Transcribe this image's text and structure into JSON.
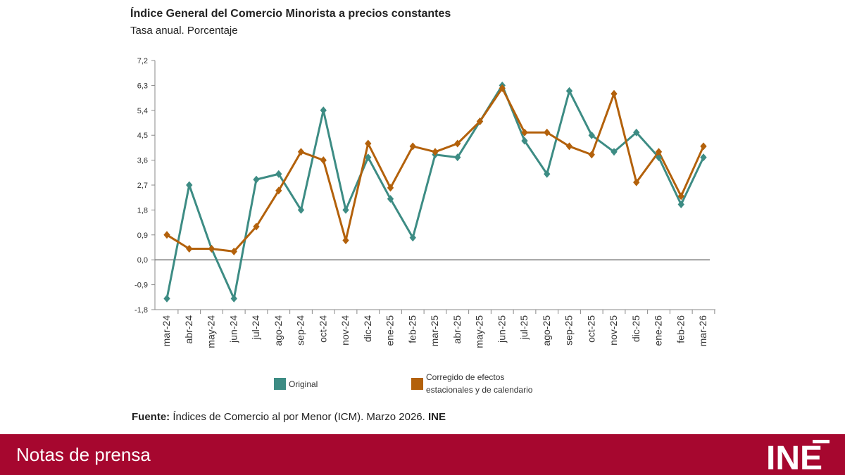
{
  "chart_data": {
    "type": "line",
    "title": "Índice General del Comercio Minorista a precios constantes",
    "subtitle": "Tasa anual. Porcentaje",
    "categories": [
      "mar-24",
      "abr-24",
      "may-24",
      "jun-24",
      "jul-24",
      "ago-24",
      "sep-24",
      "oct-24",
      "nov-24",
      "dic-24",
      "ene-25",
      "feb-25",
      "mar-25",
      "abr-25",
      "may-25",
      "jun-25",
      "jul-25",
      "ago-25",
      "sep-25",
      "oct-25",
      "nov-25",
      "dic-25",
      "ene-26",
      "feb-26",
      "mar-26"
    ],
    "yticks": [
      "7,2",
      "6,3",
      "5,4",
      "4,5",
      "3,6",
      "2,7",
      "1,8",
      "0,9",
      "0,0",
      "-0,9",
      "-1,8"
    ],
    "ylim": [
      -1.8,
      7.2
    ],
    "series": [
      {
        "name": "Original",
        "color": "#3d8c84",
        "values": [
          -1.4,
          2.7,
          0.4,
          -1.4,
          2.9,
          3.1,
          1.8,
          5.4,
          1.8,
          3.7,
          2.2,
          0.8,
          3.8,
          3.7,
          5.0,
          6.3,
          4.3,
          3.1,
          6.1,
          4.5,
          3.9,
          4.6,
          3.7,
          2.0,
          3.7
        ]
      },
      {
        "name": "Corregido de efectos estacionales y de calendario",
        "name_lines": [
          "Corregido de efectos",
          "estacionales y de calendario"
        ],
        "color": "#b3610b",
        "values": [
          0.9,
          0.4,
          0.4,
          0.3,
          1.2,
          2.5,
          3.9,
          3.6,
          0.7,
          4.2,
          2.6,
          4.1,
          3.9,
          4.2,
          5.0,
          6.2,
          4.6,
          4.6,
          4.1,
          3.8,
          6.0,
          2.8,
          3.9,
          2.3,
          4.1
        ]
      }
    ],
    "legend_position": "bottom",
    "grid": false
  },
  "source": {
    "label": "Fuente:",
    "text": " Índices de Comercio al por Menor (ICM). Marzo 2026. ",
    "org": "INE"
  },
  "footer": {
    "text": "Notas de prensa",
    "logo": "INE"
  }
}
